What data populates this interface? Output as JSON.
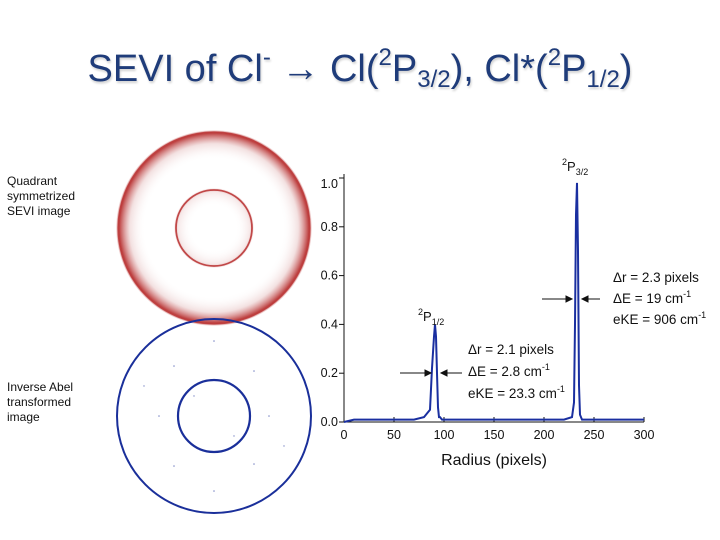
{
  "title": {
    "prefix": "SEVI of Cl",
    "anion_sup": "-",
    "arrow": "→",
    "cl": " Cl(",
    "term_sup_1": "2",
    "term_P_1": "P",
    "term_sub_1": "3/2",
    "mid": "), Cl*(",
    "term_sup_2": "2",
    "term_P_2": "P",
    "term_sub_2": "1/2",
    "end": ")"
  },
  "labels": {
    "top_image": [
      "Quadrant",
      "symmetrized",
      "SEVI image"
    ],
    "bottom_image": [
      "Inverse Abel",
      "transformed",
      "image"
    ]
  },
  "colors": {
    "title": "#1f3c7a",
    "raw_image": "#b01818",
    "abel_image": "#1a2f9a",
    "trace": "#1a2fa0"
  },
  "chart_data": {
    "type": "line",
    "xlabel": "Radius (pixels)",
    "ylabel": "",
    "xlim": [
      0,
      300
    ],
    "ylim": [
      0,
      1.0
    ],
    "x_ticks": [
      "0",
      "50",
      "100",
      "150",
      "200",
      "250",
      "300"
    ],
    "y_ticks": [
      "0.0",
      "0.2",
      "0.4",
      "0.6",
      "0.8",
      "1.0"
    ],
    "series": [
      {
        "x": [
          0,
          10,
          20,
          30,
          40,
          50,
          60,
          70,
          80,
          86,
          88,
          90,
          91,
          92,
          93,
          94,
          95,
          96,
          98,
          105,
          115,
          130,
          150,
          175,
          200,
          220,
          228,
          230,
          231,
          232,
          233,
          234,
          235,
          236,
          238,
          245,
          260,
          280,
          300
        ],
        "y": [
          0.0,
          0.01,
          0.01,
          0.01,
          0.01,
          0.01,
          0.01,
          0.01,
          0.02,
          0.05,
          0.22,
          0.35,
          0.4,
          0.35,
          0.2,
          0.06,
          0.02,
          0.02,
          0.01,
          0.01,
          0.01,
          0.01,
          0.01,
          0.01,
          0.01,
          0.01,
          0.02,
          0.08,
          0.4,
          0.85,
          0.98,
          0.7,
          0.15,
          0.03,
          0.01,
          0.01,
          0.01,
          0.01,
          0.01
        ]
      }
    ],
    "peaks": [
      {
        "label_sup": "2",
        "label_P": "P",
        "label_sub": "1/2",
        "annotation": [
          "Δr = 2.1 pixels",
          "ΔE = 2.8 cm",
          "eKE = 23.3 cm"
        ],
        "annotation_sup": [
          "",
          "-1",
          "-1"
        ]
      },
      {
        "label_sup": "2",
        "label_P": "P",
        "label_sub": "3/2",
        "annotation": [
          "Δr = 2.3 pixels",
          "ΔE = 19 cm",
          "eKE = 906 cm"
        ],
        "annotation_sup": [
          "",
          "-1",
          "-1"
        ]
      }
    ]
  }
}
